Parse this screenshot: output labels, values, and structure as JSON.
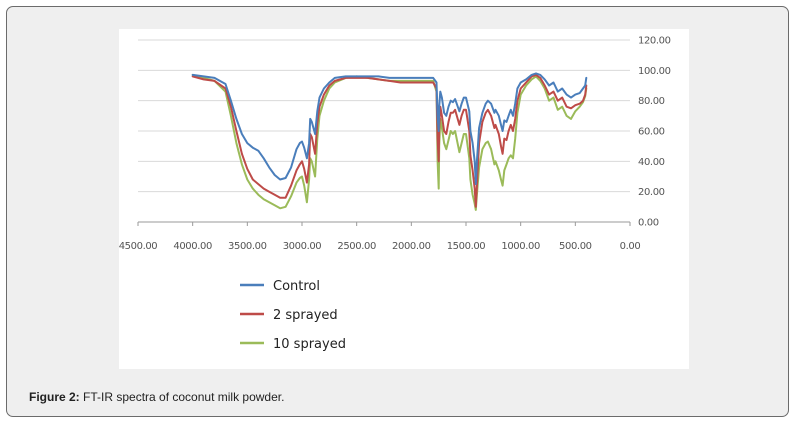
{
  "caption": {
    "label": "Figure 2:",
    "text": "FT-IR spectra of coconut milk powder."
  },
  "chart_data": {
    "type": "line",
    "title": "",
    "xlabel": "",
    "ylabel": "",
    "xlim": [
      4500,
      0
    ],
    "ylim": [
      0,
      120
    ],
    "x_ticks": [
      "4500.00",
      "4000.00",
      "3500.00",
      "3000.00",
      "2500.00",
      "2000.00",
      "1500.00",
      "1000.00",
      "500.00",
      "0.00"
    ],
    "y_ticks": [
      "0.00",
      "20.00",
      "40.00",
      "60.00",
      "80.00",
      "100.00",
      "120.00"
    ],
    "grid": "horizontal",
    "legend_position": "bottom-left",
    "series": [
      {
        "name": "Control",
        "color": "#4a7ebb",
        "points": [
          [
            4000,
            97
          ],
          [
            3900,
            96
          ],
          [
            3800,
            95
          ],
          [
            3700,
            91
          ],
          [
            3650,
            80
          ],
          [
            3600,
            68
          ],
          [
            3550,
            58
          ],
          [
            3500,
            52
          ],
          [
            3450,
            49
          ],
          [
            3400,
            47
          ],
          [
            3350,
            42
          ],
          [
            3300,
            36
          ],
          [
            3250,
            31
          ],
          [
            3200,
            28
          ],
          [
            3150,
            29
          ],
          [
            3100,
            36
          ],
          [
            3050,
            48
          ],
          [
            3020,
            52
          ],
          [
            3000,
            53
          ],
          [
            2980,
            49
          ],
          [
            2955,
            42
          ],
          [
            2935,
            52
          ],
          [
            2925,
            68
          ],
          [
            2910,
            66
          ],
          [
            2880,
            58
          ],
          [
            2860,
            73
          ],
          [
            2840,
            82
          ],
          [
            2800,
            88
          ],
          [
            2750,
            92
          ],
          [
            2700,
            95
          ],
          [
            2600,
            96
          ],
          [
            2500,
            96
          ],
          [
            2400,
            96
          ],
          [
            2300,
            96
          ],
          [
            2200,
            95
          ],
          [
            2100,
            95
          ],
          [
            2000,
            95
          ],
          [
            1900,
            95
          ],
          [
            1800,
            95
          ],
          [
            1770,
            92
          ],
          [
            1760,
            70
          ],
          [
            1750,
            60
          ],
          [
            1745,
            76
          ],
          [
            1735,
            86
          ],
          [
            1720,
            82
          ],
          [
            1700,
            72
          ],
          [
            1680,
            70
          ],
          [
            1660,
            76
          ],
          [
            1640,
            80
          ],
          [
            1620,
            79
          ],
          [
            1600,
            81
          ],
          [
            1560,
            73
          ],
          [
            1540,
            78
          ],
          [
            1520,
            82
          ],
          [
            1500,
            82
          ],
          [
            1470,
            73
          ],
          [
            1460,
            60
          ],
          [
            1440,
            52
          ],
          [
            1420,
            40
          ],
          [
            1410,
            25
          ],
          [
            1400,
            40
          ],
          [
            1380,
            62
          ],
          [
            1350,
            72
          ],
          [
            1320,
            78
          ],
          [
            1300,
            80
          ],
          [
            1270,
            78
          ],
          [
            1240,
            72
          ],
          [
            1230,
            74
          ],
          [
            1200,
            70
          ],
          [
            1180,
            64
          ],
          [
            1165,
            60
          ],
          [
            1150,
            67
          ],
          [
            1130,
            66
          ],
          [
            1110,
            70
          ],
          [
            1090,
            74
          ],
          [
            1070,
            70
          ],
          [
            1050,
            78
          ],
          [
            1030,
            88
          ],
          [
            1000,
            92
          ],
          [
            950,
            94
          ],
          [
            900,
            97
          ],
          [
            860,
            98
          ],
          [
            820,
            97
          ],
          [
            780,
            94
          ],
          [
            740,
            90
          ],
          [
            700,
            92
          ],
          [
            660,
            86
          ],
          [
            620,
            88
          ],
          [
            580,
            84
          ],
          [
            540,
            82
          ],
          [
            500,
            84
          ],
          [
            460,
            85
          ],
          [
            430,
            88
          ],
          [
            410,
            90
          ],
          [
            400,
            95
          ]
        ]
      },
      {
        "name": "2 sprayed",
        "color": "#be4b48",
        "points": [
          [
            4000,
            96
          ],
          [
            3900,
            94
          ],
          [
            3800,
            93
          ],
          [
            3700,
            88
          ],
          [
            3650,
            76
          ],
          [
            3600,
            60
          ],
          [
            3550,
            45
          ],
          [
            3500,
            35
          ],
          [
            3450,
            28
          ],
          [
            3400,
            25
          ],
          [
            3350,
            22
          ],
          [
            3300,
            20
          ],
          [
            3250,
            18
          ],
          [
            3200,
            16
          ],
          [
            3150,
            16
          ],
          [
            3100,
            24
          ],
          [
            3050,
            34
          ],
          [
            3020,
            38
          ],
          [
            3000,
            40
          ],
          [
            2980,
            35
          ],
          [
            2955,
            26
          ],
          [
            2935,
            38
          ],
          [
            2925,
            58
          ],
          [
            2910,
            56
          ],
          [
            2880,
            45
          ],
          [
            2860,
            65
          ],
          [
            2840,
            76
          ],
          [
            2800,
            84
          ],
          [
            2750,
            90
          ],
          [
            2700,
            93
          ],
          [
            2600,
            95
          ],
          [
            2500,
            95
          ],
          [
            2400,
            95
          ],
          [
            2300,
            94
          ],
          [
            2200,
            93
          ],
          [
            2100,
            92
          ],
          [
            2000,
            92
          ],
          [
            1900,
            92
          ],
          [
            1800,
            92
          ],
          [
            1770,
            88
          ],
          [
            1760,
            55
          ],
          [
            1750,
            40
          ],
          [
            1745,
            62
          ],
          [
            1735,
            76
          ],
          [
            1720,
            70
          ],
          [
            1700,
            60
          ],
          [
            1680,
            58
          ],
          [
            1660,
            66
          ],
          [
            1640,
            72
          ],
          [
            1620,
            72
          ],
          [
            1600,
            74
          ],
          [
            1560,
            64
          ],
          [
            1540,
            70
          ],
          [
            1520,
            74
          ],
          [
            1500,
            74
          ],
          [
            1470,
            60
          ],
          [
            1460,
            44
          ],
          [
            1440,
            34
          ],
          [
            1420,
            22
          ],
          [
            1410,
            10
          ],
          [
            1400,
            24
          ],
          [
            1380,
            52
          ],
          [
            1350,
            66
          ],
          [
            1320,
            72
          ],
          [
            1300,
            74
          ],
          [
            1270,
            70
          ],
          [
            1240,
            62
          ],
          [
            1230,
            64
          ],
          [
            1200,
            58
          ],
          [
            1180,
            50
          ],
          [
            1165,
            45
          ],
          [
            1150,
            55
          ],
          [
            1130,
            54
          ],
          [
            1110,
            60
          ],
          [
            1090,
            64
          ],
          [
            1070,
            60
          ],
          [
            1050,
            68
          ],
          [
            1030,
            80
          ],
          [
            1000,
            88
          ],
          [
            950,
            92
          ],
          [
            900,
            96
          ],
          [
            860,
            97
          ],
          [
            820,
            95
          ],
          [
            780,
            90
          ],
          [
            740,
            84
          ],
          [
            700,
            86
          ],
          [
            660,
            80
          ],
          [
            620,
            82
          ],
          [
            580,
            76
          ],
          [
            540,
            75
          ],
          [
            500,
            77
          ],
          [
            460,
            78
          ],
          [
            430,
            80
          ],
          [
            410,
            84
          ],
          [
            400,
            90
          ]
        ]
      },
      {
        "name": "10 sprayed",
        "color": "#9bbb59",
        "points": [
          [
            4000,
            97
          ],
          [
            3900,
            95
          ],
          [
            3800,
            93
          ],
          [
            3700,
            86
          ],
          [
            3650,
            70
          ],
          [
            3600,
            52
          ],
          [
            3550,
            38
          ],
          [
            3500,
            28
          ],
          [
            3450,
            22
          ],
          [
            3400,
            18
          ],
          [
            3350,
            15
          ],
          [
            3300,
            13
          ],
          [
            3250,
            11
          ],
          [
            3200,
            9
          ],
          [
            3150,
            10
          ],
          [
            3100,
            17
          ],
          [
            3050,
            26
          ],
          [
            3020,
            29
          ],
          [
            3000,
            30
          ],
          [
            2980,
            24
          ],
          [
            2955,
            13
          ],
          [
            2935,
            28
          ],
          [
            2925,
            42
          ],
          [
            2910,
            40
          ],
          [
            2880,
            30
          ],
          [
            2860,
            55
          ],
          [
            2840,
            70
          ],
          [
            2800,
            80
          ],
          [
            2750,
            88
          ],
          [
            2700,
            92
          ],
          [
            2600,
            95
          ],
          [
            2500,
            96
          ],
          [
            2400,
            95
          ],
          [
            2300,
            94
          ],
          [
            2200,
            93
          ],
          [
            2100,
            93
          ],
          [
            2000,
            93
          ],
          [
            1900,
            93
          ],
          [
            1800,
            93
          ],
          [
            1770,
            86
          ],
          [
            1760,
            40
          ],
          [
            1750,
            22
          ],
          [
            1745,
            50
          ],
          [
            1735,
            68
          ],
          [
            1720,
            62
          ],
          [
            1700,
            52
          ],
          [
            1680,
            48
          ],
          [
            1660,
            54
          ],
          [
            1640,
            60
          ],
          [
            1620,
            58
          ],
          [
            1600,
            60
          ],
          [
            1560,
            46
          ],
          [
            1540,
            52
          ],
          [
            1520,
            58
          ],
          [
            1500,
            58
          ],
          [
            1470,
            42
          ],
          [
            1460,
            28
          ],
          [
            1440,
            18
          ],
          [
            1420,
            12
          ],
          [
            1410,
            8
          ],
          [
            1400,
            18
          ],
          [
            1380,
            36
          ],
          [
            1350,
            48
          ],
          [
            1320,
            52
          ],
          [
            1300,
            53
          ],
          [
            1270,
            48
          ],
          [
            1240,
            38
          ],
          [
            1230,
            40
          ],
          [
            1200,
            34
          ],
          [
            1180,
            28
          ],
          [
            1165,
            24
          ],
          [
            1150,
            34
          ],
          [
            1130,
            38
          ],
          [
            1110,
            42
          ],
          [
            1090,
            44
          ],
          [
            1070,
            42
          ],
          [
            1050,
            55
          ],
          [
            1030,
            72
          ],
          [
            1000,
            84
          ],
          [
            950,
            90
          ],
          [
            900,
            94
          ],
          [
            860,
            96
          ],
          [
            820,
            93
          ],
          [
            780,
            88
          ],
          [
            740,
            80
          ],
          [
            700,
            82
          ],
          [
            660,
            74
          ],
          [
            620,
            76
          ],
          [
            580,
            70
          ],
          [
            540,
            68
          ],
          [
            500,
            73
          ],
          [
            460,
            76
          ],
          [
            430,
            79
          ],
          [
            410,
            83
          ],
          [
            400,
            88
          ]
        ]
      }
    ]
  }
}
